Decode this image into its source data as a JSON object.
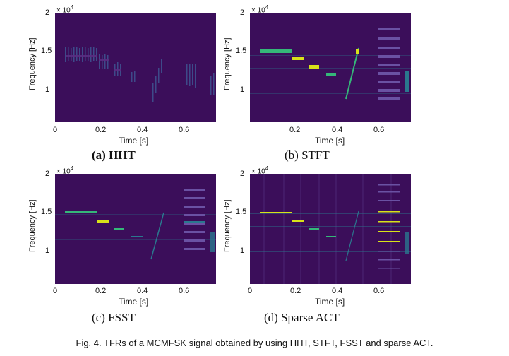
{
  "panels": [
    {
      "id": "hht",
      "caption": "(a) HHT",
      "ylabel": "Frequency [Hz]",
      "xlabel": "Time [s]",
      "yticks": [
        "2",
        "1.5",
        "1"
      ],
      "xticks": [
        "0",
        "0.2",
        "0.4",
        "0.6"
      ],
      "exponent": "× 10",
      "exponent_power": "4"
    },
    {
      "id": "stft",
      "caption": "(b) STFT",
      "ylabel": "Frequency [Hz]",
      "xlabel": "Time [s]",
      "yticks": [
        "2",
        "1.5",
        "1"
      ],
      "xticks": [
        "0.2",
        "0.4",
        "0.6"
      ],
      "exponent": "× 10",
      "exponent_power": "4"
    },
    {
      "id": "fsst",
      "caption": "(c) FSST",
      "ylabel": "Frequency [Hz]",
      "xlabel": "Time [s]",
      "yticks": [
        "2",
        "1.5",
        "1"
      ],
      "xticks": [
        "0",
        "0.2",
        "0.4",
        "0.6"
      ],
      "exponent": "× 10",
      "exponent_power": "4"
    },
    {
      "id": "act",
      "caption": "(d) Sparse ACT",
      "ylabel": "Frequency [Hz]",
      "xlabel": "Time [s]",
      "yticks": [
        "2",
        "1.5",
        "1"
      ],
      "xticks": [
        "0",
        "0.2",
        "0.4",
        "0.6"
      ],
      "exponent": "× 10",
      "exponent_power": "4"
    }
  ],
  "figure_caption": "Fig. 4. TFRs of a MCMFSK signal obtained by using HHT, STFT, FSST and sparse ACT.",
  "colors": {
    "background": "#3b0e5a",
    "highlight_yellow": "#d8e219",
    "highlight_green": "#35b779",
    "highlight_teal": "#2a788e",
    "highlight_blue": "#3e4a89"
  }
}
